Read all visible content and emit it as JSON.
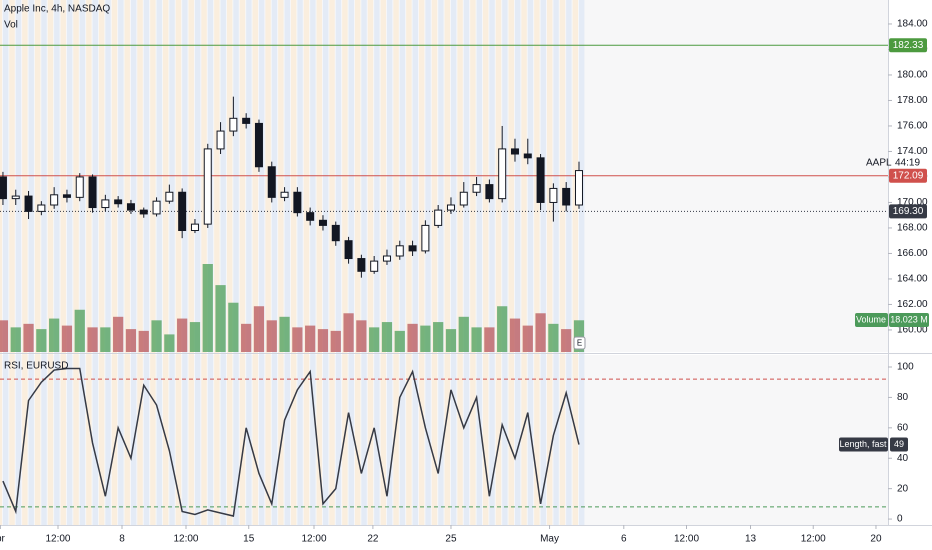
{
  "chart_data": [
    {
      "type": "candlestick",
      "title": "Apple Inc, 4h, NASDAQ",
      "subtitle": "Vol",
      "symbol": "AAPL",
      "countdown": "44:19",
      "event_marker": "E",
      "open": [
        172.0,
        170.3,
        170.5,
        169.3,
        169.8,
        170.6,
        170.4,
        172.0,
        169.6,
        170.2,
        169.9,
        169.4,
        169.1,
        170.1,
        170.8,
        167.8,
        168.3,
        174.2,
        175.6,
        176.6,
        176.2,
        172.8,
        170.4,
        170.8,
        169.2,
        168.6,
        168.2,
        167.0,
        165.6,
        164.6,
        165.4,
        165.8,
        166.6,
        166.2,
        168.2,
        169.4,
        169.8,
        170.8,
        171.4,
        170.3,
        174.2,
        173.8,
        173.5,
        170.0,
        171.1,
        169.8
      ],
      "high": [
        172.4,
        171,
        170.9,
        170.1,
        171.2,
        171,
        172.3,
        172.2,
        170.6,
        170.5,
        170.2,
        169.6,
        170.4,
        171.4,
        171.1,
        168.7,
        174.6,
        176.3,
        178.3,
        177,
        176.5,
        173.2,
        171.2,
        171.2,
        169.6,
        169,
        168.5,
        167.3,
        165.9,
        165.8,
        166.3,
        167,
        167,
        168.6,
        169.8,
        170.4,
        171.6,
        172,
        171.8,
        176,
        175,
        175,
        173.8,
        171.5,
        171.6,
        173.2
      ],
      "low": [
        169.8,
        169.8,
        168.7,
        169,
        169.5,
        170,
        170.1,
        169.2,
        169.3,
        169.6,
        169.1,
        168.8,
        168.9,
        169.9,
        167.2,
        167.6,
        168,
        173.8,
        175.2,
        175.8,
        172.4,
        170,
        170.1,
        168.9,
        168.2,
        167.8,
        166.6,
        165.2,
        164.1,
        164.4,
        165.1,
        165.5,
        165.8,
        166,
        168,
        169.1,
        169.6,
        170.5,
        170,
        170,
        173.2,
        173,
        169.4,
        168.5,
        169.3,
        169.5
      ],
      "close": [
        170.3,
        170.5,
        169.3,
        169.8,
        170.6,
        170.4,
        172.0,
        169.6,
        170.2,
        169.9,
        169.4,
        169.1,
        170.1,
        170.8,
        167.8,
        168.3,
        174.2,
        175.6,
        176.6,
        176.2,
        172.8,
        170.4,
        170.8,
        169.2,
        168.6,
        168.2,
        167.0,
        165.6,
        164.6,
        165.4,
        165.8,
        166.6,
        166.2,
        168.2,
        169.4,
        169.8,
        170.8,
        171.4,
        170.3,
        174.2,
        173.8,
        173.5,
        170.0,
        171.1,
        169.8,
        172.5
      ],
      "volume": [
        18,
        14,
        16,
        13,
        19,
        15,
        24,
        14,
        14,
        20,
        13,
        12,
        18,
        10,
        19,
        17,
        50,
        38,
        28,
        16,
        26,
        18,
        20,
        14,
        15,
        13,
        12,
        22,
        18,
        14,
        17,
        12,
        16,
        15,
        17,
        13,
        20,
        14,
        14,
        26,
        19,
        15,
        22,
        16,
        13,
        18.023
      ],
      "up_color": "#ffffff",
      "down_color": "#131722",
      "volume_up_color": "#5fa86a",
      "volume_down_color": "#c0676b",
      "volume_tag": {
        "name": "Volume",
        "value": 18.023,
        "label": "18.023 M",
        "color": "#4c9a5a"
      },
      "price_lines": [
        {
          "value": 182.33,
          "label": "182.33",
          "color": "#4c9a3f",
          "style": "solid"
        },
        {
          "value": 172.09,
          "label": "172.09",
          "color": "#d0504c",
          "style": "solid"
        },
        {
          "value": 169.3,
          "label": "169.30",
          "color": "#363a45",
          "style": "dotted"
        }
      ],
      "ylim": [
        158.27,
        185.88
      ],
      "yticks": [
        {
          "value": 184,
          "label": "184.00"
        },
        {
          "value": 182,
          "label": "182.00"
        },
        {
          "value": 180,
          "label": "180.00"
        },
        {
          "value": 178,
          "label": "178.00"
        },
        {
          "value": 176,
          "label": "176.00"
        },
        {
          "value": 174,
          "label": "174.00"
        },
        {
          "value": 172,
          "label": "172.00"
        },
        {
          "value": 170,
          "label": "170.00"
        },
        {
          "value": 168,
          "label": "168.00"
        },
        {
          "value": 166,
          "label": "166.00"
        },
        {
          "value": 164,
          "label": "164.00"
        },
        {
          "value": 162,
          "label": "162.00"
        },
        {
          "value": 160,
          "label": "160.00"
        }
      ],
      "xlim": [
        -0.23,
        69.14
      ],
      "xticks": [
        {
          "value": -0.2,
          "label": "pr"
        },
        {
          "value": 4.3,
          "label": "12:00"
        },
        {
          "value": 9.3,
          "label": "8"
        },
        {
          "value": 14.3,
          "label": "12:00"
        },
        {
          "value": 19.2,
          "label": "15"
        },
        {
          "value": 24.3,
          "label": "12:00"
        },
        {
          "value": 28.9,
          "label": "22"
        },
        {
          "value": 35,
          "label": "25"
        },
        {
          "value": 42.7,
          "label": "May"
        },
        {
          "value": 48.5,
          "label": "6"
        },
        {
          "value": 53.4,
          "label": "12:00"
        },
        {
          "value": 58.4,
          "label": "13"
        },
        {
          "value": 63.3,
          "label": "12:00"
        },
        {
          "value": 68.2,
          "label": "20"
        }
      ]
    },
    {
      "type": "line",
      "title": "RSI, EURUSD",
      "color": "#363a45",
      "values": [
        25,
        5,
        78,
        90,
        98,
        99,
        99,
        50,
        15,
        60,
        40,
        88,
        75,
        45,
        5,
        3,
        6,
        4,
        2,
        60,
        30,
        10,
        65,
        85,
        97,
        10,
        20,
        70,
        30,
        60,
        15,
        80,
        97,
        60,
        30,
        85,
        60,
        80,
        15,
        62,
        40,
        70,
        10,
        55,
        83,
        49
      ],
      "levels": [
        {
          "value": 92,
          "color": "#d0504c"
        },
        {
          "value": 8,
          "color": "#4c9a5a"
        }
      ],
      "tag": {
        "name": "Length, fast",
        "value": 49
      },
      "ylim": [
        -3.9,
        107.9
      ],
      "yticks": [
        0,
        20,
        40,
        60,
        80,
        100
      ]
    }
  ]
}
